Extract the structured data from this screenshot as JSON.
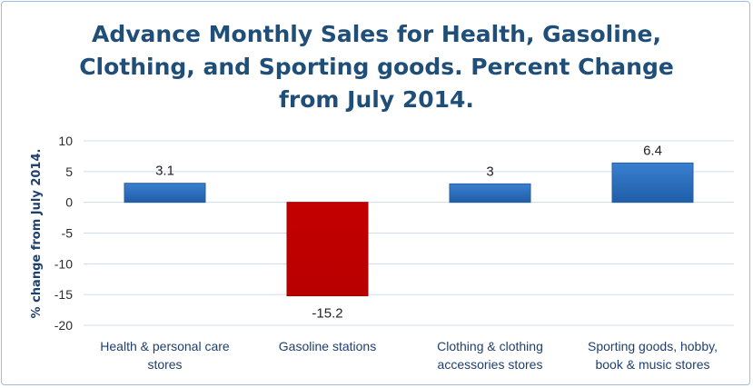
{
  "chart_data": {
    "type": "bar",
    "title_lines": [
      "Advance Monthly Sales for Health, Gasoline,",
      "Clothing, and Sporting goods. Percent Change",
      "from July 2014."
    ],
    "ylabel": "% change from July 2014.",
    "ylim": [
      -20,
      10
    ],
    "yticks": [
      10,
      5,
      0,
      -5,
      -10,
      -15,
      -20
    ],
    "grid": true,
    "legend": "none",
    "categories": [
      [
        "Health & personal care",
        "stores"
      ],
      [
        "Gasoline stations"
      ],
      [
        "Clothing & clothing",
        "accessories stores"
      ],
      [
        "Sporting goods, hobby,",
        "book &  music stores"
      ]
    ],
    "values": [
      3.1,
      -15.2,
      3,
      6.4
    ],
    "data_labels": [
      "3.1",
      "-15.2",
      "3",
      "6.4"
    ],
    "colors": {
      "positive": "#2e6fbf",
      "negative": "#c00000",
      "title": "#1f4e79",
      "grid": "#cfdcea"
    }
  }
}
